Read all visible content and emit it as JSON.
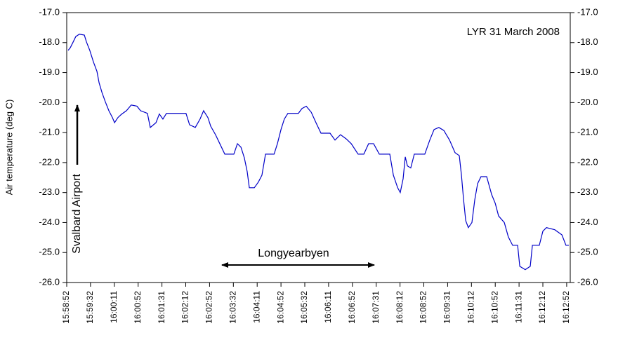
{
  "chart_data": {
    "type": "line",
    "y_label": "Air temperature (deg C)",
    "annotations": [
      "LYR 31 March 2008",
      "Svalbard Airport",
      "Longyearbyen"
    ],
    "xlim": [
      0,
      21.15
    ],
    "xticks": [
      {
        "value": 0,
        "label": "15:58:52"
      },
      {
        "value": 1,
        "label": "15:59:32"
      },
      {
        "value": 2,
        "label": "16:00:11"
      },
      {
        "value": 3,
        "label": "16:00:52"
      },
      {
        "value": 4,
        "label": "16:01:31"
      },
      {
        "value": 5,
        "label": "16:02:12"
      },
      {
        "value": 6,
        "label": "16:02:52"
      },
      {
        "value": 7,
        "label": "16:03:32"
      },
      {
        "value": 8,
        "label": "16:04:11"
      },
      {
        "value": 9,
        "label": "16:04:52"
      },
      {
        "value": 10,
        "label": "16:05:32"
      },
      {
        "value": 11,
        "label": "16:06:11"
      },
      {
        "value": 12,
        "label": "16:06:52"
      },
      {
        "value": 13,
        "label": "16:07:31"
      },
      {
        "value": 14,
        "label": "16:08:12"
      },
      {
        "value": 15,
        "label": "16:08:52"
      },
      {
        "value": 16,
        "label": "16:09:31"
      },
      {
        "value": 17,
        "label": "16:10:12"
      },
      {
        "value": 18,
        "label": "16:10:52"
      },
      {
        "value": 19,
        "label": "16:11:31"
      },
      {
        "value": 20,
        "label": "16:12:12"
      },
      {
        "value": 21,
        "label": "16:12:52"
      }
    ],
    "ylim": [
      -26,
      -17
    ],
    "yticks": [
      {
        "value": -17,
        "label": "-17.0"
      },
      {
        "value": -18,
        "label": "-18.0"
      },
      {
        "value": -19,
        "label": "-19.0"
      },
      {
        "value": -20,
        "label": "-20.0"
      },
      {
        "value": -21,
        "label": "-21.0"
      },
      {
        "value": -22,
        "label": "-22.0"
      },
      {
        "value": -23,
        "label": "-23.0"
      },
      {
        "value": -24,
        "label": "-24.0"
      },
      {
        "value": -25,
        "label": "-25.0"
      },
      {
        "value": -26,
        "label": "-26.0"
      }
    ],
    "series": [
      {
        "color": "#0000c8",
        "x": [
          0.06,
          0.15,
          0.27,
          0.38,
          0.53,
          0.74,
          0.83,
          0.97,
          1.12,
          1.27,
          1.36,
          1.48,
          1.62,
          1.77,
          1.92,
          2.01,
          2.15,
          2.3,
          2.51,
          2.71,
          2.95,
          3.1,
          3.39,
          3.51,
          3.75,
          3.89,
          4.04,
          4.19,
          4.57,
          5.01,
          5.16,
          5.4,
          5.6,
          5.75,
          5.93,
          6.05,
          6.25,
          6.43,
          6.64,
          7.02,
          7.17,
          7.32,
          7.46,
          7.58,
          7.67,
          7.88,
          8.05,
          8.2,
          8.35,
          8.71,
          8.85,
          9.0,
          9.14,
          9.29,
          9.73,
          9.88,
          10.06,
          10.27,
          10.47,
          10.68,
          11.06,
          11.27,
          11.5,
          11.74,
          11.95,
          12.24,
          12.48,
          12.68,
          12.89,
          13.13,
          13.57,
          13.72,
          13.9,
          14.01,
          14.13,
          14.22,
          14.31,
          14.45,
          14.6,
          15.04,
          15.25,
          15.43,
          15.63,
          15.84,
          16.08,
          16.31,
          16.49,
          16.58,
          16.67,
          16.76,
          16.87,
          17.02,
          17.14,
          17.26,
          17.4,
          17.64,
          17.85,
          18.0,
          18.14,
          18.38,
          18.55,
          18.73,
          18.94,
          19.03,
          19.26,
          19.47,
          19.56,
          19.85,
          20.0,
          20.15,
          20.5,
          20.8,
          20.97,
          21.09
        ],
        "values": [
          -18.26,
          -18.17,
          -17.98,
          -17.8,
          -17.72,
          -17.75,
          -17.98,
          -18.26,
          -18.64,
          -18.96,
          -19.34,
          -19.66,
          -19.97,
          -20.27,
          -20.5,
          -20.67,
          -20.5,
          -20.39,
          -20.27,
          -20.08,
          -20.12,
          -20.27,
          -20.36,
          -20.83,
          -20.67,
          -20.38,
          -20.55,
          -20.36,
          -20.36,
          -20.36,
          -20.74,
          -20.83,
          -20.55,
          -20.27,
          -20.5,
          -20.79,
          -21.07,
          -21.37,
          -21.72,
          -21.72,
          -21.37,
          -21.49,
          -21.84,
          -22.3,
          -22.84,
          -22.84,
          -22.65,
          -22.42,
          -21.72,
          -21.72,
          -21.37,
          -20.9,
          -20.55,
          -20.36,
          -20.36,
          -20.2,
          -20.12,
          -20.32,
          -20.67,
          -21.02,
          -21.02,
          -21.25,
          -21.07,
          -21.21,
          -21.37,
          -21.72,
          -21.72,
          -21.37,
          -21.37,
          -21.72,
          -21.72,
          -22.42,
          -22.84,
          -23.0,
          -22.54,
          -21.81,
          -22.11,
          -22.18,
          -21.72,
          -21.72,
          -21.25,
          -20.9,
          -20.83,
          -20.93,
          -21.25,
          -21.67,
          -21.77,
          -22.42,
          -23.24,
          -23.94,
          -24.17,
          -24.0,
          -23.24,
          -22.7,
          -22.47,
          -22.47,
          -23.07,
          -23.36,
          -23.78,
          -24.0,
          -24.48,
          -24.76,
          -24.76,
          -25.46,
          -25.57,
          -25.46,
          -24.76,
          -24.76,
          -24.29,
          -24.17,
          -24.24,
          -24.41,
          -24.76,
          -24.76
        ]
      }
    ]
  }
}
